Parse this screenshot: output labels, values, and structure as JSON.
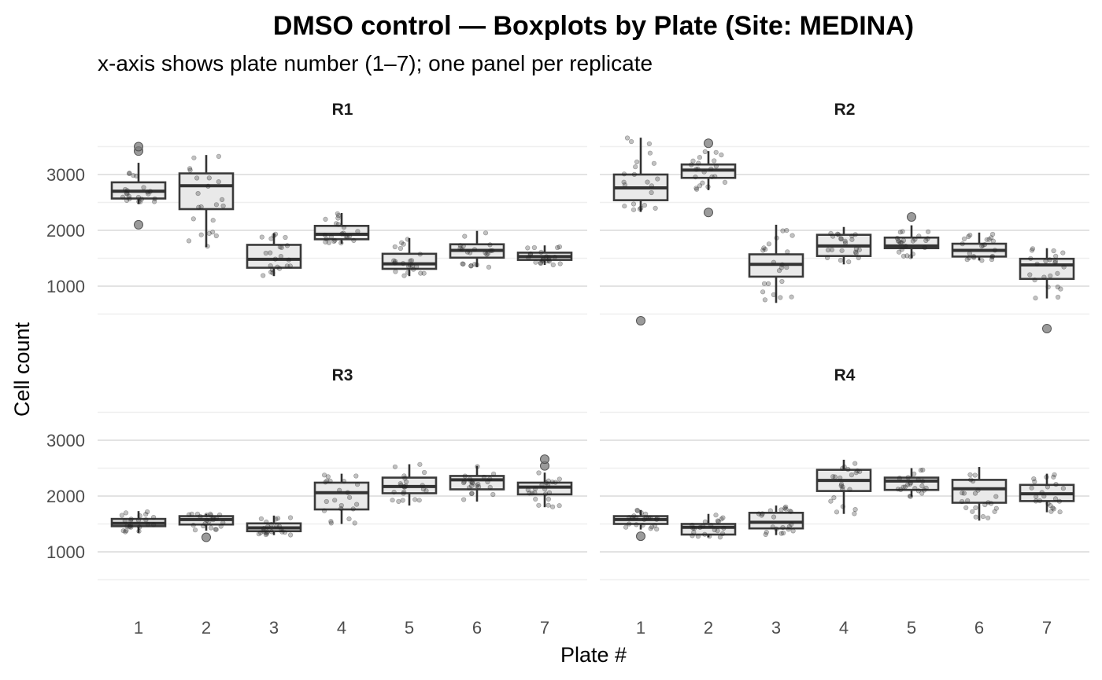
{
  "chart_data": {
    "type": "boxplot",
    "title": "DMSO control — Boxplots by Plate (Site: MEDINA)",
    "subtitle": "x-axis shows plate number (1–7); one panel per replicate",
    "xlabel": "Plate #",
    "ylabel": "Cell count",
    "categories": [
      "1",
      "2",
      "3",
      "4",
      "5",
      "6",
      "7"
    ],
    "y_ticks": [
      1000,
      2000,
      3000
    ],
    "ylim": [
      0,
      3900
    ],
    "grid": true,
    "panels": [
      {
        "name": "R1",
        "boxes": [
          {
            "plate": 1,
            "low": 2470,
            "q1": 2570,
            "median": 2700,
            "q3": 2860,
            "high": 3210,
            "outliers": [
              2100,
              3420,
              3500
            ]
          },
          {
            "plate": 2,
            "low": 1700,
            "q1": 2380,
            "median": 2800,
            "q3": 3020,
            "high": 3350,
            "outliers": []
          },
          {
            "plate": 3,
            "low": 1180,
            "q1": 1330,
            "median": 1480,
            "q3": 1740,
            "high": 1950,
            "outliers": []
          },
          {
            "plate": 4,
            "low": 1760,
            "q1": 1840,
            "median": 1930,
            "q3": 2080,
            "high": 2310,
            "outliers": []
          },
          {
            "plate": 5,
            "low": 1180,
            "q1": 1310,
            "median": 1400,
            "q3": 1580,
            "high": 1860,
            "outliers": []
          },
          {
            "plate": 6,
            "low": 1340,
            "q1": 1510,
            "median": 1640,
            "q3": 1750,
            "high": 1990,
            "outliers": []
          },
          {
            "plate": 7,
            "low": 1380,
            "q1": 1470,
            "median": 1530,
            "q3": 1600,
            "high": 1730,
            "outliers": []
          }
        ]
      },
      {
        "name": "R2",
        "boxes": [
          {
            "plate": 1,
            "low": 2330,
            "q1": 2540,
            "median": 2760,
            "q3": 3000,
            "high": 3660,
            "outliers": [
              380
            ]
          },
          {
            "plate": 2,
            "low": 2720,
            "q1": 2940,
            "median": 3080,
            "q3": 3180,
            "high": 3420,
            "outliers": [
              2320,
              3560
            ]
          },
          {
            "plate": 3,
            "low": 700,
            "q1": 1170,
            "median": 1390,
            "q3": 1570,
            "high": 2100,
            "outliers": []
          },
          {
            "plate": 4,
            "low": 1390,
            "q1": 1540,
            "median": 1720,
            "q3": 1920,
            "high": 2060,
            "outliers": []
          },
          {
            "plate": 5,
            "low": 1500,
            "q1": 1680,
            "median": 1720,
            "q3": 1870,
            "high": 2090,
            "outliers": [
              2240
            ]
          },
          {
            "plate": 6,
            "low": 1460,
            "q1": 1530,
            "median": 1640,
            "q3": 1760,
            "high": 1960,
            "outliers": []
          },
          {
            "plate": 7,
            "low": 780,
            "q1": 1130,
            "median": 1380,
            "q3": 1490,
            "high": 1680,
            "outliers": [
              240
            ]
          }
        ]
      },
      {
        "name": "R3",
        "boxes": [
          {
            "plate": 1,
            "low": 1340,
            "q1": 1460,
            "median": 1510,
            "q3": 1590,
            "high": 1730,
            "outliers": []
          },
          {
            "plate": 2,
            "low": 1380,
            "q1": 1490,
            "median": 1580,
            "q3": 1640,
            "high": 1680,
            "outliers": [
              1260
            ]
          },
          {
            "plate": 3,
            "low": 1300,
            "q1": 1370,
            "median": 1430,
            "q3": 1510,
            "high": 1650,
            "outliers": []
          },
          {
            "plate": 4,
            "low": 1500,
            "q1": 1760,
            "median": 2060,
            "q3": 2240,
            "high": 2400,
            "outliers": []
          },
          {
            "plate": 5,
            "low": 1830,
            "q1": 2050,
            "median": 2170,
            "q3": 2330,
            "high": 2570,
            "outliers": []
          },
          {
            "plate": 6,
            "low": 1900,
            "q1": 2120,
            "median": 2290,
            "q3": 2360,
            "high": 2540,
            "outliers": []
          },
          {
            "plate": 7,
            "low": 1800,
            "q1": 2030,
            "median": 2160,
            "q3": 2240,
            "high": 2420,
            "outliers": [
              2540,
              2660
            ]
          }
        ]
      },
      {
        "name": "R4",
        "boxes": [
          {
            "plate": 1,
            "low": 1400,
            "q1": 1500,
            "median": 1580,
            "q3": 1640,
            "high": 1750,
            "outliers": [
              1280
            ]
          },
          {
            "plate": 2,
            "low": 1260,
            "q1": 1310,
            "median": 1440,
            "q3": 1500,
            "high": 1680,
            "outliers": []
          },
          {
            "plate": 3,
            "low": 1300,
            "q1": 1420,
            "median": 1530,
            "q3": 1700,
            "high": 1830,
            "outliers": []
          },
          {
            "plate": 4,
            "low": 1680,
            "q1": 2090,
            "median": 2280,
            "q3": 2470,
            "high": 2650,
            "outliers": []
          },
          {
            "plate": 5,
            "low": 1990,
            "q1": 2110,
            "median": 2270,
            "q3": 2330,
            "high": 2500,
            "outliers": []
          },
          {
            "plate": 6,
            "low": 1560,
            "q1": 1880,
            "median": 2130,
            "q3": 2290,
            "high": 2520,
            "outliers": []
          },
          {
            "plate": 7,
            "low": 1710,
            "q1": 1910,
            "median": 2040,
            "q3": 2200,
            "high": 2400,
            "outliers": []
          }
        ]
      }
    ]
  }
}
